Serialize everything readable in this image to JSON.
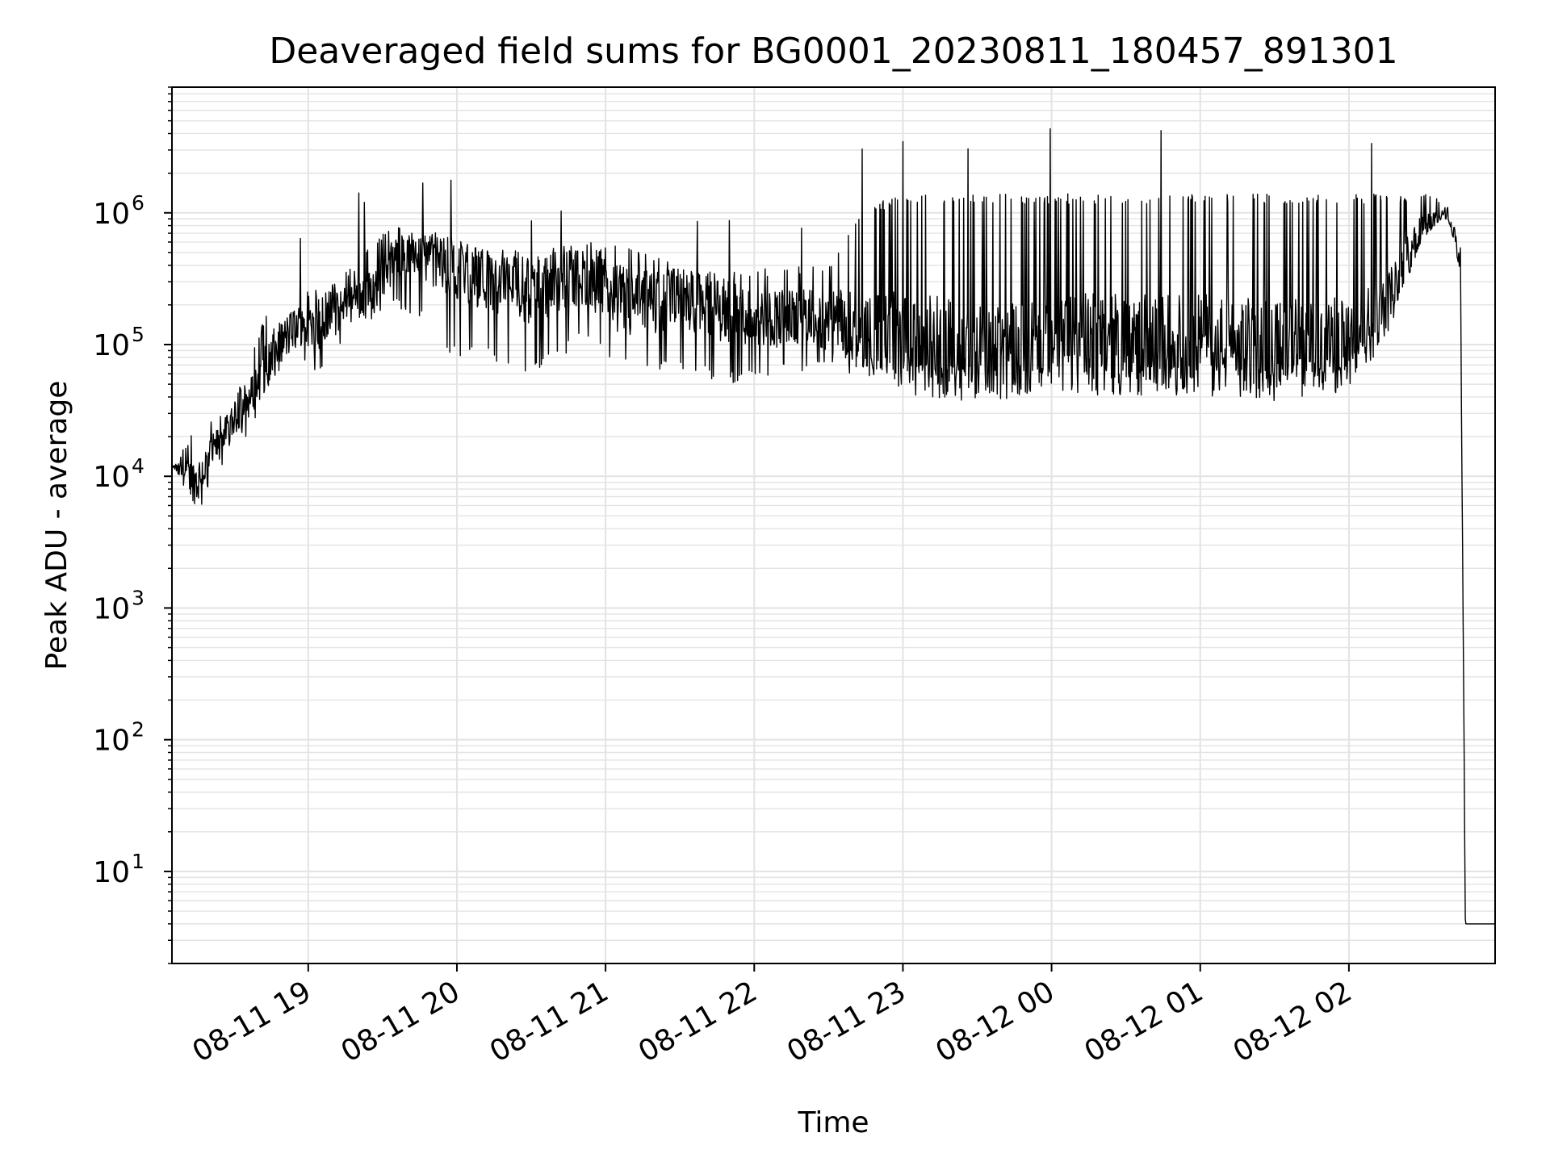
{
  "chart_data": {
    "type": "line",
    "title": "Deaveraged field sums for BG0001_20230811_180457_891301",
    "xlabel": "Time",
    "ylabel": "Peak ADU - average",
    "yscale": "log",
    "xlim": [
      "2023-08-11 18:05",
      "2023-08-12 02:59"
    ],
    "ylim": [
      2,
      9000000
    ],
    "grid": true,
    "line_color": "#000000",
    "grid_color": "#e3e3e3",
    "x_tick_labels": [
      "08-11 19",
      "08-11 20",
      "08-11 21",
      "08-11 22",
      "08-11 23",
      "08-12 00",
      "08-12 01",
      "08-12 02"
    ],
    "x_tick_times": [
      "2023-08-11 19:00",
      "2023-08-11 20:00",
      "2023-08-11 21:00",
      "2023-08-11 22:00",
      "2023-08-11 23:00",
      "2023-08-12 00:00",
      "2023-08-12 01:00",
      "2023-08-12 02:00"
    ],
    "y_ticks": [
      {
        "base": "10",
        "exp": "1",
        "value": 10
      },
      {
        "base": "10",
        "exp": "2",
        "value": 100
      },
      {
        "base": "10",
        "exp": "3",
        "value": 1000
      },
      {
        "base": "10",
        "exp": "4",
        "value": 10000
      },
      {
        "base": "10",
        "exp": "5",
        "value": 100000
      },
      {
        "base": "10",
        "exp": "6",
        "value": 1000000
      }
    ],
    "series": [
      {
        "x": [
          "2023-08-11 18:05",
          "2023-08-11 18:15",
          "2023-08-11 18:25",
          "2023-08-11 18:35",
          "2023-08-11 18:45",
          "2023-08-11 18:55",
          "2023-08-11 19:05",
          "2023-08-11 19:15",
          "2023-08-11 19:25",
          "2023-08-11 19:35",
          "2023-08-11 19:45",
          "2023-08-11 19:55",
          "2023-08-11 20:10",
          "2023-08-11 20:30",
          "2023-08-11 20:50",
          "2023-08-11 21:10",
          "2023-08-11 21:30",
          "2023-08-11 21:50",
          "2023-08-11 22:10",
          "2023-08-11 22:30",
          "2023-08-11 22:45",
          "2023-08-11 23:00",
          "2023-08-11 23:30",
          "2023-08-12 00:00",
          "2023-08-12 00:30",
          "2023-08-12 01:00",
          "2023-08-12 01:30",
          "2023-08-12 02:00",
          "2023-08-12 02:15",
          "2023-08-12 02:30",
          "2023-08-12 02:40",
          "2023-08-12 02:45",
          "2023-08-12 02:47",
          "2023-08-12 02:50",
          "2023-08-12 02:59"
        ],
        "y": [
          12000,
          9000,
          20000,
          35000,
          80000,
          140000,
          130000,
          200000,
          250000,
          450000,
          500000,
          400000,
          320000,
          250000,
          330000,
          200000,
          230000,
          170000,
          160000,
          150000,
          130000,
          100000,
          90000,
          100000,
          100000,
          100000,
          90000,
          100000,
          200000,
          800000,
          1000000,
          400000,
          4,
          4,
          4
        ],
        "peak_low": [
          12000,
          5000,
          12000,
          20000,
          50000,
          80000,
          60000,
          100000,
          150000,
          200000,
          150000,
          80000,
          80000,
          60000,
          100000,
          60000,
          60000,
          50000,
          60000,
          60000,
          60000,
          55000,
          55000,
          55000,
          55000,
          55000,
          55000,
          60000,
          150000,
          600000,
          800000,
          400000,
          4,
          4,
          4
        ],
        "peak_high": [
          12000,
          25000,
          30000,
          60000,
          250000,
          300000,
          250000,
          350000,
          600000,
          800000,
          650000,
          600000,
          550000,
          500000,
          600000,
          600000,
          400000,
          350000,
          400000,
          400000,
          1100000,
          1400000,
          1400000,
          1400000,
          1400000,
          1400000,
          1400000,
          1400000,
          1400000,
          1400000,
          1200000,
          600000,
          4,
          4,
          4
        ]
      }
    ]
  }
}
